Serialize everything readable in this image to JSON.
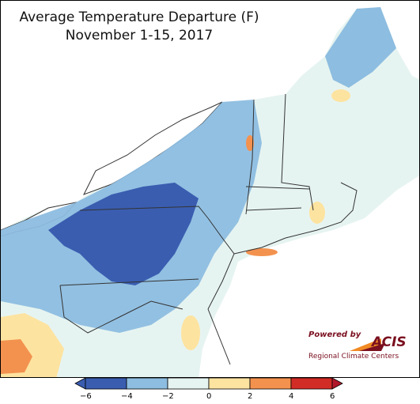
{
  "map": {
    "title_line1": "Average Temperature Departure (F)",
    "title_line2": "November 1-15, 2017",
    "logo": {
      "powered_by": "Powered by",
      "brand": "ACIS",
      "subtitle": "Regional Climate Centers"
    }
  },
  "legend": {
    "tick_labels": [
      "−6",
      "−4",
      "−2",
      "0",
      "2",
      "4",
      "6"
    ],
    "bins": [
      {
        "range": "-6 to -4",
        "color": "#3a5db0"
      },
      {
        "range": "-4 to -2",
        "color": "#8dbde0"
      },
      {
        "range": "-2 to 0",
        "color": "#e6f4f1"
      },
      {
        "range": "0 to 2",
        "color": "#fde3a0"
      },
      {
        "range": "2 to 4",
        "color": "#f3924f"
      },
      {
        "range": "4 to 6",
        "color": "#d22c27"
      }
    ],
    "under_color": "#3a5db0",
    "over_color": "#b2182b"
  }
}
